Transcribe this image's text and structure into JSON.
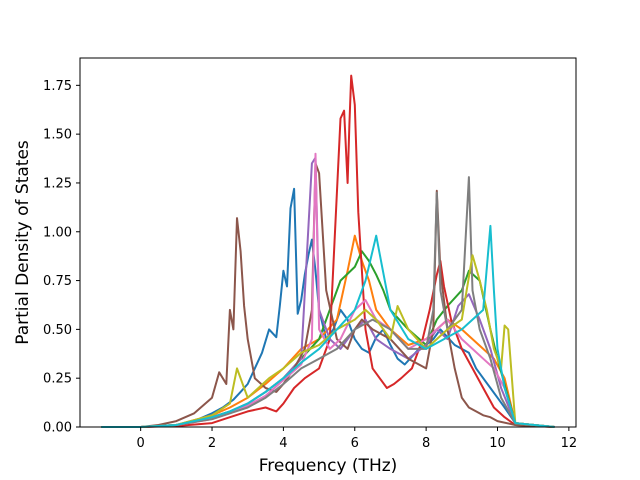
{
  "chart_data": {
    "type": "line",
    "title": "",
    "xlabel": "Frequency (THz)",
    "ylabel": "Partial Density of States",
    "xlim": [
      -1.7,
      12.2
    ],
    "ylim": [
      0.0,
      1.89
    ],
    "xticks": [
      0,
      2,
      4,
      6,
      8,
      10,
      12
    ],
    "xtick_labels": [
      "0",
      "2",
      "4",
      "6",
      "8",
      "10",
      "12"
    ],
    "yticks": [
      0.0,
      0.25,
      0.5,
      0.75,
      1.0,
      1.25,
      1.5,
      1.75
    ],
    "ytick_labels": [
      "0.00",
      "0.25",
      "0.50",
      "0.75",
      "1.00",
      "1.25",
      "1.50",
      "1.75"
    ],
    "grid": false,
    "legend": "none",
    "colors": [
      "#1f77b4",
      "#ff7f0e",
      "#2ca02c",
      "#d62728",
      "#9467bd",
      "#8c564b",
      "#e377c2",
      "#7f7f7f",
      "#bcbd22",
      "#17becf"
    ],
    "series": [
      {
        "color": "#1f77b4",
        "x": [
          -1.1,
          0,
          0.5,
          1,
          1.5,
          2,
          2.3,
          2.6,
          2.8,
          3,
          3.2,
          3.4,
          3.6,
          3.8,
          3.9,
          4,
          4.1,
          4.2,
          4.3,
          4.4,
          4.5,
          4.6,
          4.7,
          4.8,
          4.9,
          5,
          5.2,
          5.4,
          5.6,
          5.8,
          6,
          6.2,
          6.4,
          6.6,
          6.8,
          7,
          7.2,
          7.4,
          7.6,
          7.8,
          8,
          8.2,
          8.4,
          8.6,
          8.8,
          9,
          9.2,
          9.4,
          9.6,
          9.8,
          10,
          10.2,
          10.5,
          11.6
        ],
        "y": [
          0,
          0,
          0.003,
          0.01,
          0.03,
          0.07,
          0.1,
          0.14,
          0.18,
          0.22,
          0.3,
          0.38,
          0.5,
          0.46,
          0.62,
          0.8,
          0.72,
          1.12,
          1.22,
          0.58,
          0.65,
          0.78,
          0.88,
          0.96,
          0.8,
          0.6,
          0.45,
          0.5,
          0.6,
          0.55,
          0.45,
          0.4,
          0.38,
          0.46,
          0.5,
          0.42,
          0.35,
          0.32,
          0.36,
          0.4,
          0.42,
          0.45,
          0.5,
          0.46,
          0.42,
          0.4,
          0.38,
          0.3,
          0.25,
          0.2,
          0.15,
          0.1,
          0.02,
          0
        ]
      },
      {
        "color": "#ff7f0e",
        "x": [
          -1.1,
          0,
          1,
          2,
          2.5,
          3,
          3.5,
          4,
          4.5,
          5,
          5.5,
          5.8,
          6,
          6.2,
          6.4,
          6.6,
          6.8,
          7,
          7.5,
          8,
          8.3,
          8.6,
          9,
          9.3,
          9.6,
          9.9,
          10.2,
          10.5,
          11.6
        ],
        "y": [
          0,
          0,
          0.01,
          0.06,
          0.1,
          0.15,
          0.22,
          0.3,
          0.4,
          0.45,
          0.55,
          0.8,
          0.98,
          0.85,
          0.75,
          0.6,
          0.55,
          0.5,
          0.42,
          0.45,
          0.5,
          0.55,
          0.5,
          0.45,
          0.4,
          0.35,
          0.25,
          0.02,
          0
        ]
      },
      {
        "color": "#2ca02c",
        "x": [
          -1.1,
          0,
          1,
          2,
          2.5,
          3,
          3.5,
          4,
          4.5,
          5,
          5.3,
          5.6,
          6,
          6.2,
          6.4,
          6.6,
          6.8,
          7,
          7.5,
          8,
          8.3,
          8.6,
          9,
          9.2,
          9.5,
          9.8,
          10,
          10.3,
          10.5,
          11.6
        ],
        "y": [
          0,
          0,
          0.01,
          0.05,
          0.08,
          0.12,
          0.18,
          0.25,
          0.35,
          0.45,
          0.6,
          0.75,
          0.82,
          0.9,
          0.85,
          0.78,
          0.7,
          0.6,
          0.5,
          0.42,
          0.55,
          0.62,
          0.7,
          0.8,
          0.75,
          0.5,
          0.35,
          0.15,
          0.02,
          0
        ]
      },
      {
        "color": "#d62728",
        "x": [
          -1.1,
          0,
          1,
          2,
          2.5,
          3,
          3.5,
          3.8,
          4,
          4.3,
          4.6,
          5,
          5.3,
          5.6,
          5.7,
          5.8,
          5.85,
          5.9,
          6,
          6.1,
          6.3,
          6.5,
          6.7,
          6.9,
          7.1,
          7.3,
          7.6,
          7.9,
          8.1,
          8.3,
          8.4,
          8.5,
          8.7,
          9,
          9.3,
          9.6,
          9.9,
          10.2,
          10.5,
          11.6
        ],
        "y": [
          0,
          0,
          0.005,
          0.02,
          0.05,
          0.08,
          0.1,
          0.08,
          0.12,
          0.2,
          0.25,
          0.3,
          0.45,
          1.58,
          1.62,
          1.25,
          1.55,
          1.8,
          1.65,
          1.1,
          0.5,
          0.3,
          0.25,
          0.2,
          0.22,
          0.25,
          0.3,
          0.45,
          0.6,
          0.78,
          0.85,
          0.72,
          0.55,
          0.4,
          0.3,
          0.2,
          0.1,
          0.05,
          0.01,
          0
        ]
      },
      {
        "color": "#9467bd",
        "x": [
          -1.1,
          0,
          1,
          2,
          2.5,
          3,
          3.5,
          4,
          4.5,
          4.8,
          4.9,
          5,
          5.3,
          5.6,
          6,
          6.3,
          6.6,
          7,
          7.5,
          8,
          8.3,
          8.6,
          8.9,
          9.2,
          9.5,
          9.8,
          10.1,
          10.5,
          11.6
        ],
        "y": [
          0,
          0,
          0.01,
          0.05,
          0.08,
          0.12,
          0.18,
          0.25,
          0.35,
          1.35,
          1.38,
          0.6,
          0.45,
          0.4,
          0.5,
          0.55,
          0.45,
          0.4,
          0.35,
          0.42,
          0.5,
          0.45,
          0.62,
          0.68,
          0.55,
          0.4,
          0.2,
          0.02,
          0
        ]
      },
      {
        "color": "#8c564b",
        "x": [
          -1.1,
          0,
          0.5,
          1,
          1.5,
          2,
          2.2,
          2.4,
          2.5,
          2.6,
          2.7,
          2.8,
          2.9,
          3,
          3.2,
          3.5,
          3.8,
          4,
          4.3,
          4.6,
          4.8,
          4.9,
          5,
          5.2,
          5.5,
          5.8,
          6,
          6.2,
          6.5,
          7,
          7.5,
          8,
          8.2,
          8.3,
          8.4,
          8.6,
          8.8,
          9,
          9.2,
          9.4,
          9.6,
          9.8,
          10,
          10.5,
          11.6
        ],
        "y": [
          0,
          0,
          0.01,
          0.03,
          0.07,
          0.15,
          0.28,
          0.22,
          0.6,
          0.5,
          1.07,
          0.9,
          0.62,
          0.45,
          0.25,
          0.2,
          0.18,
          0.22,
          0.3,
          0.4,
          0.6,
          1.35,
          1.3,
          0.7,
          0.45,
          0.4,
          0.5,
          0.55,
          0.5,
          0.45,
          0.35,
          0.3,
          0.5,
          1.21,
          0.8,
          0.5,
          0.3,
          0.15,
          0.1,
          0.08,
          0.06,
          0.05,
          0.03,
          0.01,
          0
        ]
      },
      {
        "color": "#e377c2",
        "x": [
          -1.1,
          0,
          1,
          2,
          2.5,
          3,
          3.5,
          4,
          4.5,
          4.8,
          4.9,
          5,
          5.3,
          5.6,
          6,
          6.3,
          6.6,
          7,
          7.5,
          8,
          8.3,
          8.6,
          9,
          9.3,
          9.6,
          9.9,
          10.2,
          10.5,
          11.6
        ],
        "y": [
          0,
          0,
          0.01,
          0.04,
          0.07,
          0.11,
          0.16,
          0.24,
          0.32,
          0.45,
          1.4,
          0.5,
          0.4,
          0.45,
          0.6,
          0.65,
          0.55,
          0.5,
          0.4,
          0.45,
          0.5,
          0.55,
          0.45,
          0.4,
          0.35,
          0.3,
          0.2,
          0.02,
          0
        ]
      },
      {
        "color": "#7f7f7f",
        "x": [
          -1.1,
          0,
          1,
          2,
          2.5,
          3,
          3.5,
          4,
          4.5,
          5,
          5.5,
          6,
          6.5,
          7,
          7.5,
          8,
          8.2,
          8.3,
          8.4,
          8.6,
          9,
          9.2,
          9.3,
          9.5,
          9.8,
          10.1,
          10.5,
          11.6
        ],
        "y": [
          0,
          0,
          0.01,
          0.04,
          0.07,
          0.1,
          0.15,
          0.22,
          0.3,
          0.35,
          0.4,
          0.5,
          0.55,
          0.5,
          0.4,
          0.4,
          0.6,
          1.2,
          0.7,
          0.5,
          0.6,
          1.28,
          0.7,
          0.5,
          0.35,
          0.15,
          0.02,
          0
        ]
      },
      {
        "color": "#bcbd22",
        "x": [
          -1.1,
          0,
          1,
          2,
          2.5,
          2.7,
          2.9,
          3,
          3.3,
          3.6,
          4,
          4.5,
          5,
          5.5,
          6,
          6.3,
          6.6,
          7,
          7.2,
          7.5,
          8,
          8.3,
          8.6,
          9,
          9.3,
          9.5,
          9.7,
          9.9,
          10.1,
          10.2,
          10.3,
          10.5,
          11.6
        ],
        "y": [
          0,
          0,
          0.01,
          0.06,
          0.12,
          0.3,
          0.2,
          0.15,
          0.2,
          0.25,
          0.3,
          0.38,
          0.42,
          0.5,
          0.55,
          0.6,
          0.55,
          0.45,
          0.62,
          0.5,
          0.4,
          0.45,
          0.5,
          0.55,
          0.88,
          0.75,
          0.6,
          0.4,
          0.3,
          0.52,
          0.5,
          0.02,
          0
        ]
      },
      {
        "color": "#17becf",
        "x": [
          -1.1,
          0,
          1,
          2,
          2.5,
          3,
          3.5,
          4,
          4.5,
          5,
          5.5,
          6,
          6.3,
          6.6,
          7,
          7.5,
          8,
          8.5,
          9,
          9.3,
          9.6,
          9.8,
          9.9,
          10,
          10.2,
          10.5,
          11.6
        ],
        "y": [
          0,
          0,
          0.01,
          0.05,
          0.08,
          0.12,
          0.18,
          0.25,
          0.33,
          0.4,
          0.5,
          0.6,
          0.75,
          0.98,
          0.6,
          0.45,
          0.4,
          0.45,
          0.5,
          0.55,
          0.6,
          1.03,
          0.7,
          0.4,
          0.2,
          0.02,
          0
        ]
      }
    ]
  }
}
